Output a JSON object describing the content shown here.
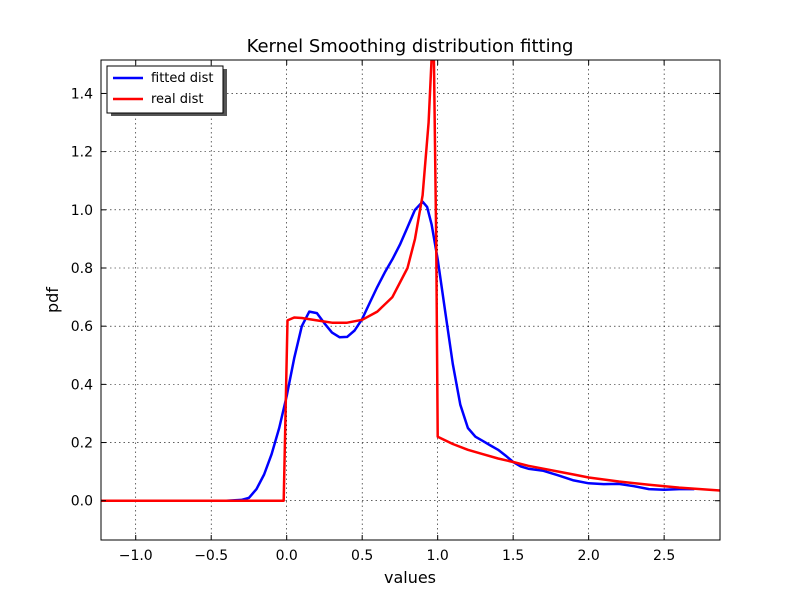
{
  "chart_data": {
    "type": "line",
    "title": "Kernel Smoothing distribution fitting",
    "xlabel": "values",
    "ylabel": "pdf",
    "xlim": [
      -1.23,
      2.87
    ],
    "ylim": [
      -0.135,
      1.515
    ],
    "x_ticks": [
      -1.0,
      -0.5,
      0.0,
      0.5,
      1.0,
      1.5,
      2.0,
      2.5
    ],
    "x_tick_labels": [
      "−1.0",
      "−0.5",
      "0.0",
      "0.5",
      "1.0",
      "1.5",
      "2.0",
      "2.5"
    ],
    "y_ticks": [
      0.0,
      0.2,
      0.4,
      0.6,
      0.8,
      1.0,
      1.2,
      1.4
    ],
    "y_tick_labels": [
      "0.0",
      "0.2",
      "0.4",
      "0.6",
      "0.8",
      "1.0",
      "1.2",
      "1.4"
    ],
    "grid": true,
    "legend_position": "top-left",
    "series": [
      {
        "name": "fitted dist",
        "color": "#0000ff",
        "points": [
          [
            -1.23,
            0.0
          ],
          [
            -0.4,
            0.0
          ],
          [
            -0.3,
            0.003
          ],
          [
            -0.25,
            0.01
          ],
          [
            -0.2,
            0.04
          ],
          [
            -0.15,
            0.09
          ],
          [
            -0.1,
            0.16
          ],
          [
            -0.05,
            0.25
          ],
          [
            0.0,
            0.36
          ],
          [
            0.05,
            0.49
          ],
          [
            0.1,
            0.6
          ],
          [
            0.15,
            0.65
          ],
          [
            0.2,
            0.645
          ],
          [
            0.25,
            0.61
          ],
          [
            0.3,
            0.578
          ],
          [
            0.35,
            0.562
          ],
          [
            0.4,
            0.563
          ],
          [
            0.45,
            0.585
          ],
          [
            0.5,
            0.625
          ],
          [
            0.55,
            0.68
          ],
          [
            0.6,
            0.735
          ],
          [
            0.65,
            0.785
          ],
          [
            0.7,
            0.83
          ],
          [
            0.75,
            0.88
          ],
          [
            0.8,
            0.94
          ],
          [
            0.85,
            1.0
          ],
          [
            0.9,
            1.028
          ],
          [
            0.93,
            1.01
          ],
          [
            0.96,
            0.95
          ],
          [
            1.0,
            0.83
          ],
          [
            1.05,
            0.65
          ],
          [
            1.1,
            0.47
          ],
          [
            1.15,
            0.33
          ],
          [
            1.2,
            0.25
          ],
          [
            1.25,
            0.22
          ],
          [
            1.3,
            0.205
          ],
          [
            1.35,
            0.19
          ],
          [
            1.4,
            0.175
          ],
          [
            1.45,
            0.155
          ],
          [
            1.5,
            0.133
          ],
          [
            1.55,
            0.118
          ],
          [
            1.6,
            0.11
          ],
          [
            1.7,
            0.103
          ],
          [
            1.8,
            0.087
          ],
          [
            1.9,
            0.07
          ],
          [
            2.0,
            0.06
          ],
          [
            2.1,
            0.057
          ],
          [
            2.2,
            0.058
          ],
          [
            2.3,
            0.05
          ],
          [
            2.4,
            0.04
          ],
          [
            2.5,
            0.038
          ],
          [
            2.6,
            0.04
          ],
          [
            2.7,
            0.04
          ]
        ]
      },
      {
        "name": "real dist",
        "color": "#ff0000",
        "points": [
          [
            -1.23,
            0.0
          ],
          [
            -0.02,
            0.0
          ],
          [
            0.005,
            0.62
          ],
          [
            0.05,
            0.63
          ],
          [
            0.1,
            0.628
          ],
          [
            0.2,
            0.62
          ],
          [
            0.3,
            0.612
          ],
          [
            0.4,
            0.612
          ],
          [
            0.5,
            0.622
          ],
          [
            0.6,
            0.65
          ],
          [
            0.7,
            0.7
          ],
          [
            0.8,
            0.8
          ],
          [
            0.85,
            0.9
          ],
          [
            0.9,
            1.05
          ],
          [
            0.94,
            1.3
          ],
          [
            0.96,
            1.52
          ],
          [
            0.975,
            1.52
          ],
          [
            0.99,
            0.9
          ],
          [
            1.0,
            0.22
          ],
          [
            1.1,
            0.195
          ],
          [
            1.2,
            0.175
          ],
          [
            1.3,
            0.16
          ],
          [
            1.4,
            0.145
          ],
          [
            1.5,
            0.133
          ],
          [
            1.6,
            0.12
          ],
          [
            1.7,
            0.11
          ],
          [
            1.8,
            0.1
          ],
          [
            1.9,
            0.09
          ],
          [
            2.0,
            0.08
          ],
          [
            2.2,
            0.066
          ],
          [
            2.4,
            0.055
          ],
          [
            2.6,
            0.045
          ],
          [
            2.87,
            0.035
          ]
        ]
      }
    ]
  }
}
